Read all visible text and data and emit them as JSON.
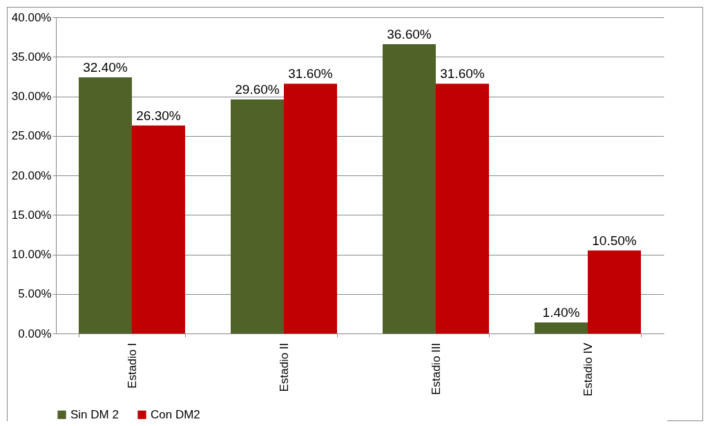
{
  "chart_data": {
    "type": "bar",
    "categories": [
      "Estadio I",
      "Estadio II",
      "Estadio III",
      "Estadio IV"
    ],
    "series": [
      {
        "name": "Sin DM 2",
        "color": "#4f6228",
        "values": [
          32.4,
          29.6,
          36.6,
          1.4
        ],
        "value_labels": [
          "32.40%",
          "29.60%",
          "36.60%",
          "1.40%"
        ]
      },
      {
        "name": "Con DM2",
        "color": "#c00000",
        "values": [
          26.3,
          31.6,
          31.6,
          10.5
        ],
        "value_labels": [
          "26.30%",
          "31.60%",
          "31.60%",
          "10.50%"
        ]
      }
    ],
    "ylim": [
      0,
      40
    ],
    "yticks": [
      {
        "value": 0,
        "label": "0.00%"
      },
      {
        "value": 5,
        "label": "5.00%"
      },
      {
        "value": 10,
        "label": "10.00%"
      },
      {
        "value": 15,
        "label": "15.00%"
      },
      {
        "value": 20,
        "label": "20.00%"
      },
      {
        "value": 25,
        "label": "25.00%"
      },
      {
        "value": 30,
        "label": "30.00%"
      },
      {
        "value": 35,
        "label": "35.00%"
      },
      {
        "value": 40,
        "label": "40.00%"
      }
    ],
    "grid": "y",
    "legend": "bottom"
  }
}
